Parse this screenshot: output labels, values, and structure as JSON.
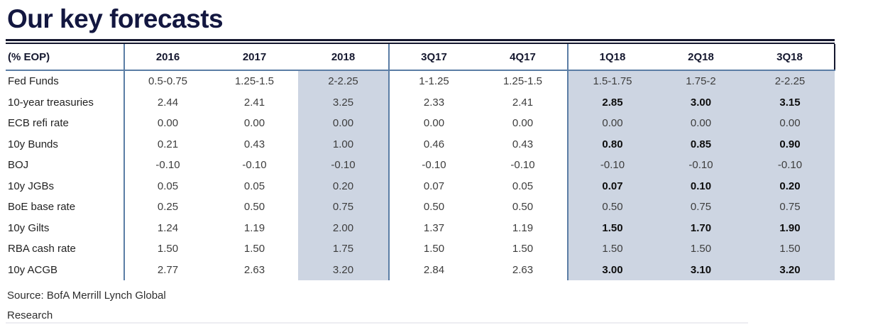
{
  "title": "Our key forecasts",
  "source_line1": "Source: BofA Merrill Lynch Global",
  "source_line2": "Research",
  "colors": {
    "title_navy": "#131740",
    "top_rule": "#14172e",
    "grid_steel_blue": "#5b7da5",
    "forecast_shading": "#cdd5e2",
    "cell_text": "#3d3d3d",
    "bold_forecast_text": "#0d0d0d"
  },
  "chart_data": {
    "type": "table",
    "title": "Our key forecasts",
    "unit_note": "(% EOP)",
    "columns": [
      "(% EOP)",
      "2016",
      "2017",
      "2018",
      "3Q17",
      "4Q17",
      "1Q18",
      "2Q18",
      "3Q18"
    ],
    "shaded_columns": [
      "2018",
      "1Q18",
      "2Q18",
      "3Q18"
    ],
    "rows": [
      {
        "label": "Fed Funds",
        "values": [
          "0.5-0.75",
          "1.25-1.5",
          "2-2.25",
          "1-1.25",
          "1.25-1.5",
          "1.5-1.75",
          "1.75-2",
          "2-2.25"
        ],
        "bold_forecast": false
      },
      {
        "label": "10-year treasuries",
        "values": [
          "2.44",
          "2.41",
          "3.25",
          "2.33",
          "2.41",
          "2.85",
          "3.00",
          "3.15"
        ],
        "bold_forecast": true
      },
      {
        "label": "ECB refi rate",
        "values": [
          "0.00",
          "0.00",
          "0.00",
          "0.00",
          "0.00",
          "0.00",
          "0.00",
          "0.00"
        ],
        "bold_forecast": false
      },
      {
        "label": "10y Bunds",
        "values": [
          "0.21",
          "0.43",
          "1.00",
          "0.46",
          "0.43",
          "0.80",
          "0.85",
          "0.90"
        ],
        "bold_forecast": true
      },
      {
        "label": "BOJ",
        "values": [
          "-0.10",
          "-0.10",
          "-0.10",
          "-0.10",
          "-0.10",
          "-0.10",
          "-0.10",
          "-0.10"
        ],
        "bold_forecast": false
      },
      {
        "label": "10y JGBs",
        "values": [
          "0.05",
          "0.05",
          "0.20",
          "0.07",
          "0.05",
          "0.07",
          "0.10",
          "0.20"
        ],
        "bold_forecast": true
      },
      {
        "label": "BoE base rate",
        "values": [
          "0.25",
          "0.50",
          "0.75",
          "0.50",
          "0.50",
          "0.50",
          "0.75",
          "0.75"
        ],
        "bold_forecast": false
      },
      {
        "label": "10y Gilts",
        "values": [
          "1.24",
          "1.19",
          "2.00",
          "1.37",
          "1.19",
          "1.50",
          "1.70",
          "1.90"
        ],
        "bold_forecast": true
      },
      {
        "label": "RBA cash rate",
        "values": [
          "1.50",
          "1.50",
          "1.75",
          "1.50",
          "1.50",
          "1.50",
          "1.50",
          "1.50"
        ],
        "bold_forecast": false
      },
      {
        "label": "10y ACGB",
        "values": [
          "2.77",
          "2.63",
          "3.20",
          "2.84",
          "2.63",
          "3.00",
          "3.10",
          "3.20"
        ],
        "bold_forecast": true
      }
    ]
  }
}
